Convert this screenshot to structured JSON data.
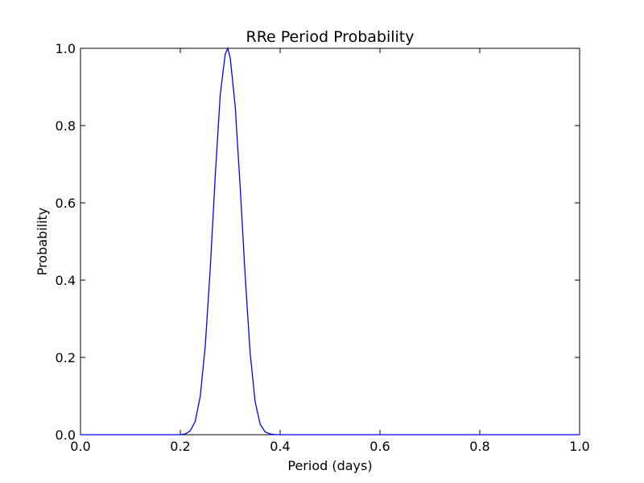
{
  "chart_data": {
    "type": "line",
    "title": "RRe Period Probability",
    "xlabel": "Period (days)",
    "ylabel": "Probability",
    "xlim": [
      0.0,
      1.0
    ],
    "ylim": [
      0.0,
      1.0
    ],
    "grid": false,
    "line_color": "#0000ff",
    "x_ticks": [
      "0.0",
      "0.2",
      "0.4",
      "0.6",
      "0.8",
      "1.0"
    ],
    "y_ticks": [
      "0.0",
      "0.2",
      "0.4",
      "0.6",
      "0.8",
      "1.0"
    ],
    "series": [
      {
        "x": [
          0.0,
          0.2,
          0.21,
          0.22,
          0.23,
          0.24,
          0.25,
          0.26,
          0.27,
          0.28,
          0.29,
          0.295,
          0.3,
          0.31,
          0.32,
          0.33,
          0.34,
          0.35,
          0.36,
          0.37,
          0.38,
          0.39,
          0.4,
          1.0
        ],
        "y": [
          0.0,
          0.0,
          0.002,
          0.01,
          0.035,
          0.1,
          0.23,
          0.43,
          0.67,
          0.88,
          0.985,
          1.0,
          0.975,
          0.85,
          0.64,
          0.41,
          0.21,
          0.085,
          0.027,
          0.007,
          0.002,
          0.0005,
          0.0,
          0.0
        ]
      }
    ]
  }
}
